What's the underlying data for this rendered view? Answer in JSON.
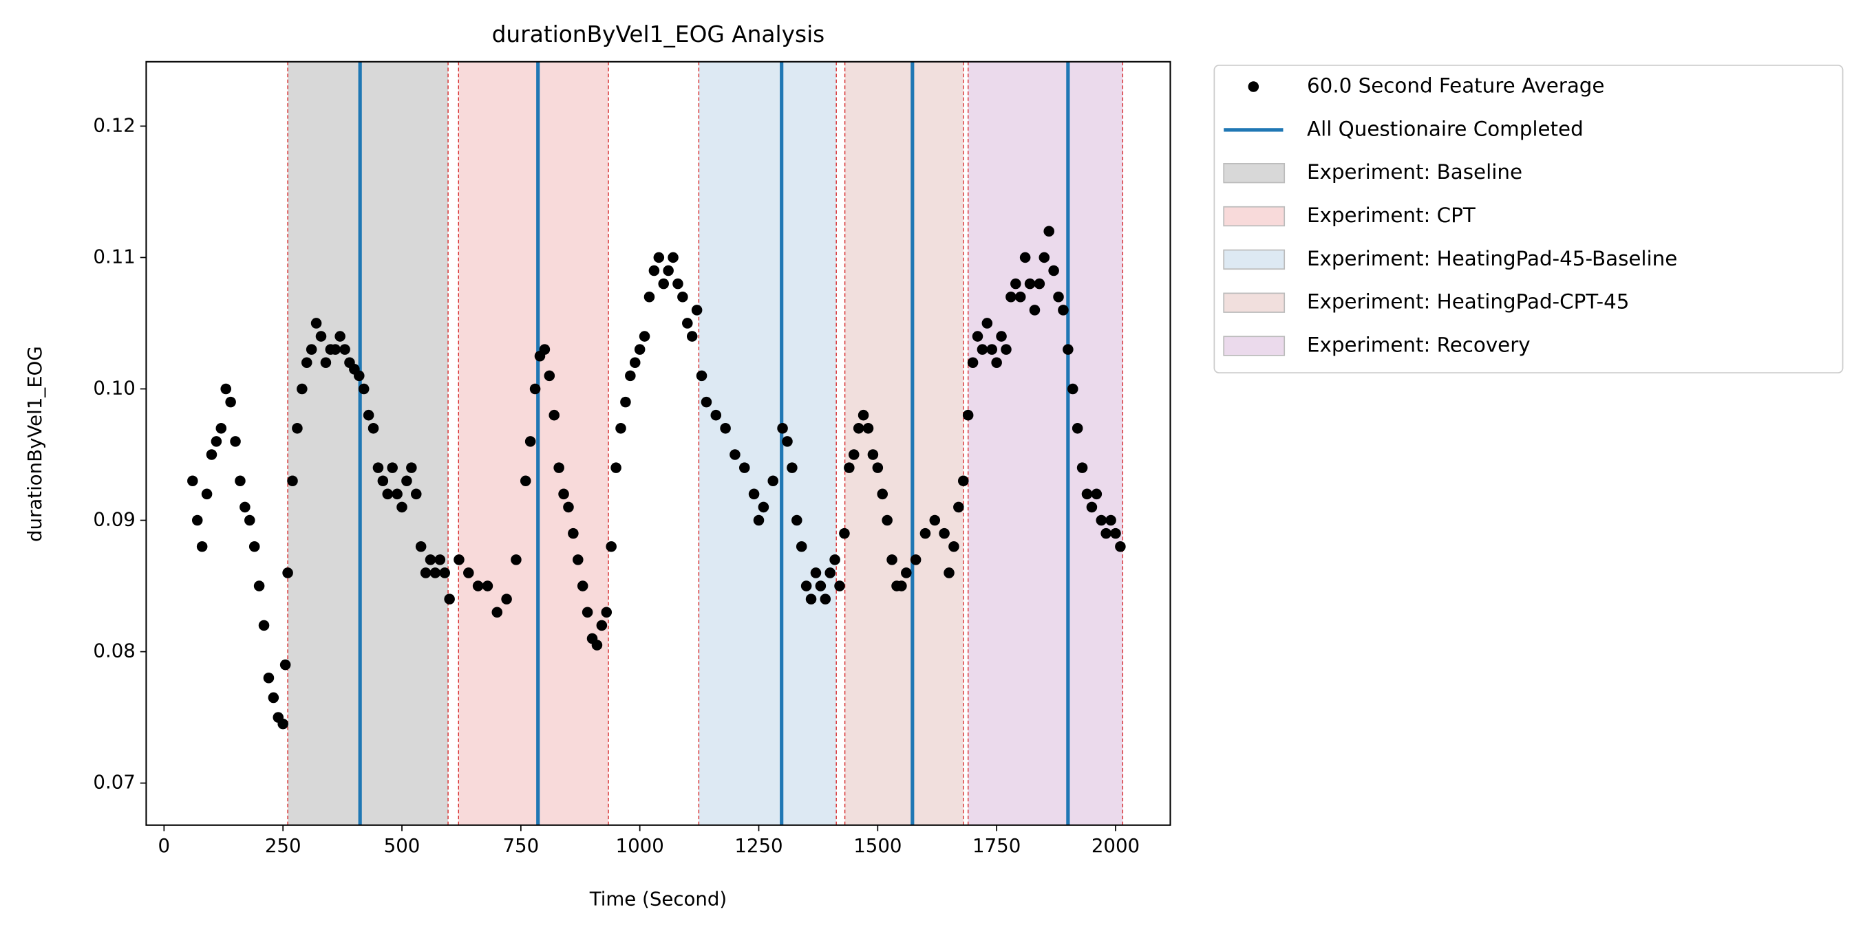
{
  "chart_data": {
    "type": "scatter",
    "title": "durationByVel1_EOG Analysis",
    "x_label": "Time (Second)",
    "y_label": "durationByVel1_EOG",
    "xlim": [
      -37.5,
      2115
    ],
    "ylim": [
      0.0668,
      0.1249
    ],
    "xticks": [
      0,
      250,
      500,
      750,
      1000,
      1250,
      1500,
      1750,
      2000
    ],
    "yticks": [
      0.07,
      0.08,
      0.09,
      {
        "value": 0.1,
        "label": "0.10"
      },
      0.11,
      0.12
    ],
    "legend": "outside upper right",
    "series": [
      {
        "name": "60.0 Second Feature Average",
        "color": "#000000",
        "x": [
          60,
          70,
          80,
          90,
          100,
          110,
          120,
          130,
          140,
          150,
          160,
          170,
          180,
          190,
          200,
          210,
          220,
          230,
          240,
          250,
          255,
          260,
          270,
          280,
          290,
          300,
          310,
          320,
          330,
          340,
          350,
          360,
          370,
          380,
          390,
          400,
          410,
          420,
          430,
          440,
          450,
          460,
          470,
          480,
          490,
          500,
          510,
          520,
          530,
          540,
          550,
          560,
          570,
          580,
          590,
          600,
          620,
          640,
          660,
          680,
          700,
          720,
          740,
          760,
          770,
          780,
          790,
          800,
          810,
          820,
          830,
          840,
          850,
          860,
          870,
          880,
          890,
          900,
          910,
          920,
          930,
          940,
          950,
          960,
          970,
          980,
          990,
          1000,
          1010,
          1020,
          1030,
          1040,
          1050,
          1060,
          1070,
          1080,
          1090,
          1100,
          1110,
          1120,
          1130,
          1140,
          1160,
          1180,
          1200,
          1220,
          1240,
          1250,
          1260,
          1280,
          1300,
          1310,
          1320,
          1330,
          1340,
          1350,
          1360,
          1370,
          1380,
          1390,
          1400,
          1410,
          1420,
          1430,
          1440,
          1450,
          1460,
          1470,
          1480,
          1490,
          1500,
          1510,
          1520,
          1530,
          1540,
          1550,
          1560,
          1580,
          1600,
          1620,
          1640,
          1650,
          1660,
          1670,
          1680,
          1690,
          1700,
          1710,
          1720,
          1730,
          1740,
          1750,
          1760,
          1770,
          1780,
          1790,
          1800,
          1810,
          1820,
          1830,
          1840,
          1850,
          1860,
          1870,
          1880,
          1890,
          1900,
          1910,
          1920,
          1930,
          1940,
          1950,
          1960,
          1970,
          1980,
          1990,
          2000,
          2010
        ],
        "values": [
          0.093,
          0.09,
          0.088,
          0.092,
          0.095,
          0.096,
          0.097,
          0.1,
          0.099,
          0.096,
          0.093,
          0.091,
          0.09,
          0.088,
          0.085,
          0.082,
          0.078,
          0.0765,
          0.075,
          0.0745,
          0.079,
          0.086,
          0.093,
          0.097,
          0.1,
          0.102,
          0.103,
          0.105,
          0.104,
          0.102,
          0.103,
          0.103,
          0.104,
          0.103,
          0.102,
          0.1015,
          0.101,
          0.1,
          0.098,
          0.097,
          0.094,
          0.093,
          0.092,
          0.094,
          0.092,
          0.091,
          0.093,
          0.094,
          0.092,
          0.088,
          0.086,
          0.087,
          0.086,
          0.087,
          0.086,
          0.084,
          0.087,
          0.086,
          0.085,
          0.085,
          0.083,
          0.084,
          0.087,
          0.093,
          0.096,
          0.1,
          0.1025,
          0.103,
          0.101,
          0.098,
          0.094,
          0.092,
          0.091,
          0.089,
          0.087,
          0.085,
          0.083,
          0.081,
          0.0805,
          0.082,
          0.083,
          0.088,
          0.094,
          0.097,
          0.099,
          0.101,
          0.102,
          0.103,
          0.104,
          0.107,
          0.109,
          0.11,
          0.108,
          0.109,
          0.11,
          0.108,
          0.107,
          0.105,
          0.104,
          0.106,
          0.101,
          0.099,
          0.098,
          0.097,
          0.095,
          0.094,
          0.092,
          0.09,
          0.091,
          0.093,
          0.097,
          0.096,
          0.094,
          0.09,
          0.088,
          0.085,
          0.084,
          0.086,
          0.085,
          0.084,
          0.086,
          0.087,
          0.085,
          0.089,
          0.094,
          0.095,
          0.097,
          0.098,
          0.097,
          0.095,
          0.094,
          0.092,
          0.09,
          0.087,
          0.085,
          0.085,
          0.086,
          0.087,
          0.089,
          0.09,
          0.089,
          0.086,
          0.088,
          0.091,
          0.093,
          0.098,
          0.102,
          0.104,
          0.103,
          0.105,
          0.103,
          0.102,
          0.104,
          0.103,
          0.107,
          0.108,
          0.107,
          0.11,
          0.108,
          0.106,
          0.108,
          0.11,
          0.112,
          0.109,
          0.107,
          0.106,
          0.103,
          0.1,
          0.097,
          0.094,
          0.092,
          0.091,
          0.092,
          0.09,
          0.089,
          0.09,
          0.089,
          0.088
        ]
      }
    ],
    "vlines": {
      "name": "All Questionaire Completed",
      "color": "#1f77b4",
      "x": [
        412,
        786,
        1298,
        1573,
        1900
      ]
    },
    "span_edge_color": "#d62728",
    "spans": [
      {
        "name": "Experiment: Baseline",
        "color": "#d8d8d8",
        "start": 260,
        "end": 597
      },
      {
        "name": "Experiment: CPT",
        "color": "#f8dada",
        "start": 619,
        "end": 934
      },
      {
        "name": "Experiment: HeatingPad-45-Baseline",
        "color": "#dde9f3",
        "start": 1124,
        "end": 1413
      },
      {
        "name": "Experiment: HeatingPad-CPT-45",
        "color": "#f1dfdd",
        "start": 1431,
        "end": 1680
      },
      {
        "name": "Experiment: Recovery",
        "color": "#ebdaec",
        "start": 1690,
        "end": 2015
      }
    ]
  }
}
